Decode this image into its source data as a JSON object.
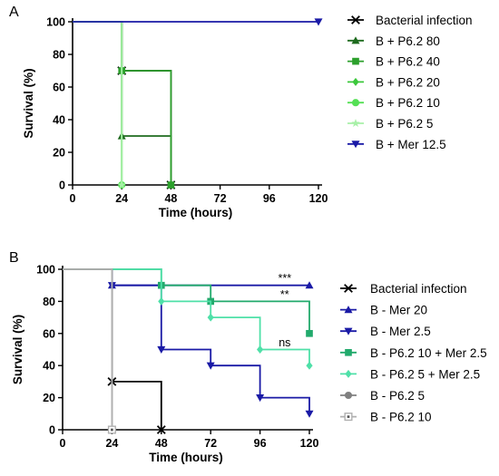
{
  "chart_data": [
    {
      "panel": "A",
      "type": "line",
      "step": true,
      "xlabel": "Time (hours)",
      "ylabel": "Survival (%)",
      "xlim": [
        0,
        120
      ],
      "ylim": [
        0,
        100
      ],
      "xticks": [
        0,
        24,
        48,
        72,
        96,
        120
      ],
      "yticks": [
        0,
        20,
        40,
        60,
        80,
        100
      ],
      "legend_position": "right",
      "series": [
        {
          "name": "Bacterial infection",
          "color": "#000000",
          "marker": "x",
          "x": [
            0,
            24,
            48
          ],
          "y": [
            100,
            70,
            0
          ]
        },
        {
          "name": "B + P6.2 80",
          "color": "#1e6b1e",
          "marker": "triangle-up",
          "x": [
            0,
            24,
            48
          ],
          "y": [
            100,
            30,
            0
          ]
        },
        {
          "name": "B + P6.2 40",
          "color": "#2ca02c",
          "marker": "square",
          "x": [
            0,
            24,
            48
          ],
          "y": [
            100,
            70,
            0
          ]
        },
        {
          "name": "B + P6.2 20",
          "color": "#3cc83c",
          "marker": "diamond",
          "x": [
            0,
            24
          ],
          "y": [
            100,
            0
          ]
        },
        {
          "name": "B + P6.2 10",
          "color": "#55e055",
          "marker": "circle",
          "x": [
            0,
            24
          ],
          "y": [
            100,
            0
          ]
        },
        {
          "name": "B + P6.2 5",
          "color": "#a8f0a8",
          "marker": "star",
          "x": [
            0,
            24
          ],
          "y": [
            100,
            0
          ]
        },
        {
          "name": "B + Mer 12.5",
          "color": "#1a1aa6",
          "marker": "triangle-down",
          "x": [
            0,
            120
          ],
          "y": [
            100,
            100
          ]
        }
      ]
    },
    {
      "panel": "B",
      "type": "line",
      "step": true,
      "xlabel": "Time (hours)",
      "ylabel": "Survival (%)",
      "xlim": [
        0,
        120
      ],
      "ylim": [
        0,
        100
      ],
      "xticks": [
        0,
        24,
        48,
        72,
        96,
        120
      ],
      "yticks": [
        0,
        20,
        40,
        60,
        80,
        100
      ],
      "legend_position": "right",
      "annotations": [
        {
          "text": "***",
          "x": 108,
          "y": 92
        },
        {
          "text": "**",
          "x": 108,
          "y": 82
        },
        {
          "text": "ns",
          "x": 108,
          "y": 52
        }
      ],
      "series": [
        {
          "name": "Bacterial infection",
          "color": "#000000",
          "marker": "x",
          "x": [
            0,
            24,
            48
          ],
          "y": [
            100,
            30,
            0
          ]
        },
        {
          "name": "B - Mer 20",
          "color": "#1a1aa6",
          "marker": "triangle-up",
          "x": [
            0,
            24,
            120
          ],
          "y": [
            100,
            90,
            90
          ]
        },
        {
          "name": "B - Mer 2.5",
          "color": "#1a1aa6",
          "marker": "triangle-down",
          "x": [
            0,
            24,
            48,
            72,
            96,
            120
          ],
          "y": [
            100,
            90,
            50,
            40,
            20,
            10
          ]
        },
        {
          "name": "B - P6.2 10 + Mer 2.5",
          "color": "#22aa6c",
          "marker": "square",
          "x": [
            0,
            48,
            72,
            120
          ],
          "y": [
            100,
            90,
            80,
            60
          ]
        },
        {
          "name": "B - P6.2 5 + Mer 2.5",
          "color": "#4fe0a8",
          "marker": "diamond",
          "x": [
            0,
            48,
            72,
            96,
            120
          ],
          "y": [
            100,
            80,
            70,
            50,
            40
          ]
        },
        {
          "name": "B - P6.2 5",
          "color": "#808080",
          "marker": "circle",
          "x": [
            0,
            24
          ],
          "y": [
            100,
            0
          ]
        },
        {
          "name": "B - P6.2 10",
          "color": "#b0b0b0",
          "marker": "square-dot",
          "x": [
            0,
            24
          ],
          "y": [
            100,
            0
          ]
        }
      ]
    }
  ]
}
